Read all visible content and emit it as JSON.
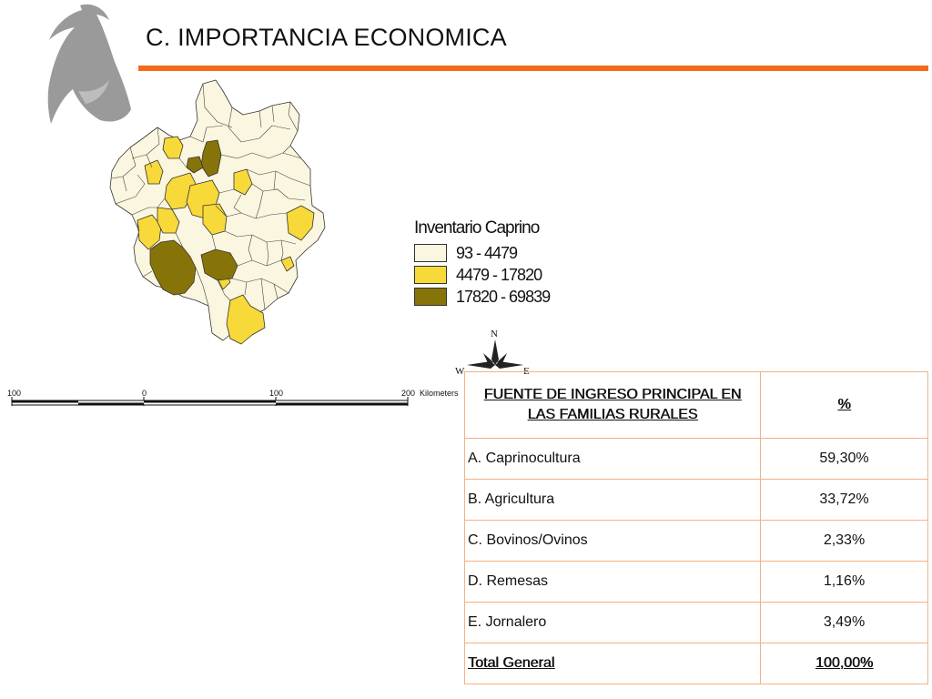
{
  "page": {
    "title": "C. IMPORTANCIA ECONOMICA"
  },
  "theme": {
    "accent": "#f26b1d",
    "logo_gray": "#9a9a9a",
    "table_border": "#f4b183"
  },
  "icons": {
    "logo": "goat-head-icon",
    "compass": "compass-rose-icon"
  },
  "map": {
    "legend": {
      "title": "Inventario Caprino",
      "classes": [
        {
          "label": "93 - 4479",
          "color": "#fbf6df"
        },
        {
          "label": "4479 - 17820",
          "color": "#f8d93a"
        },
        {
          "label": "17820 - 69839",
          "color": "#867409"
        }
      ]
    },
    "compass": {
      "n": "N",
      "w": "W",
      "e": "E"
    },
    "scalebar": {
      "ticks": [
        "100",
        "0",
        "100",
        "200"
      ],
      "unit": "Kilometers"
    }
  },
  "table": {
    "header": {
      "source_line1": "FUENTE DE INGRESO PRINCIPAL EN",
      "source_line2": "LAS FAMILIAS RURALES",
      "percent": "%"
    },
    "rows": [
      {
        "label": "A. Caprinocultura",
        "value": "59,30%"
      },
      {
        "label": "B. Agricultura",
        "value": "33,72%"
      },
      {
        "label": "C. Bovinos/Ovinos",
        "value": "2,33%"
      },
      {
        "label": "D. Remesas",
        "value": "1,16%"
      },
      {
        "label": "E. Jornalero",
        "value": "3,49%"
      }
    ],
    "total": {
      "label": "Total General",
      "value": "100,00%"
    }
  }
}
